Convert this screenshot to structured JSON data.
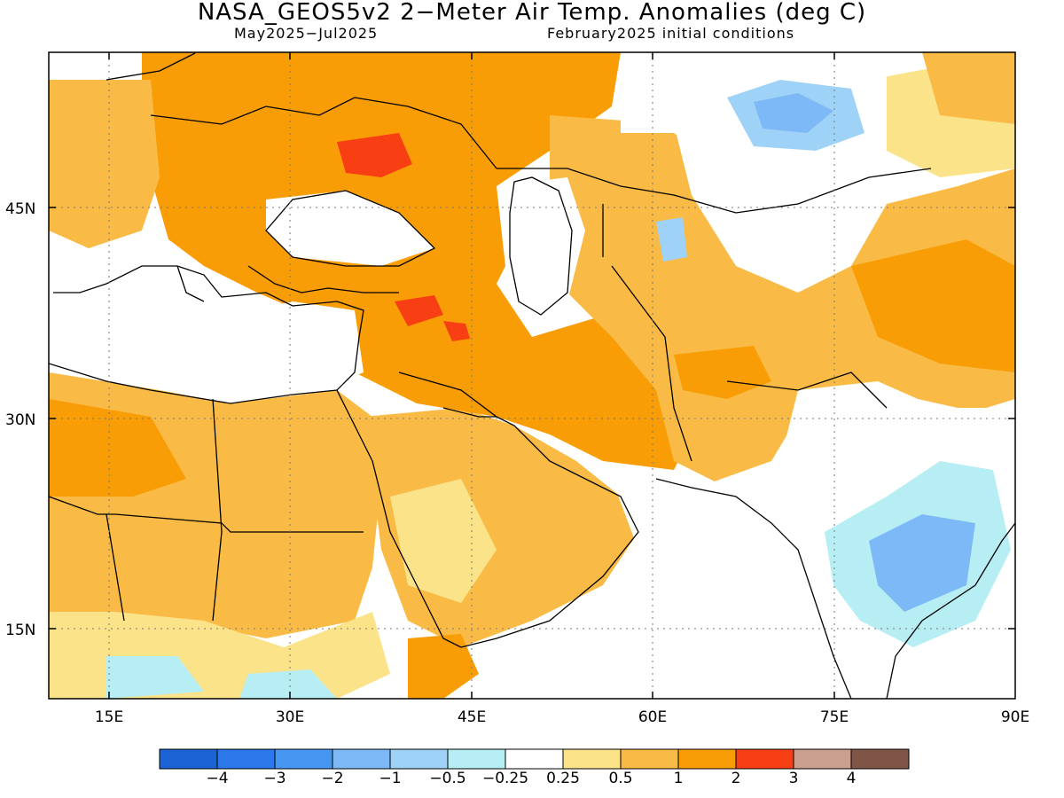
{
  "title": "NASA_GEOS5v2 2−Meter Air Temp. Anomalies (deg C)",
  "subtitle_left": "May2025−Jul2025",
  "subtitle_right": "February2025 initial conditions",
  "map": {
    "extent": {
      "lon_min": 10,
      "lon_max": 90,
      "lat_min": 10,
      "lat_max": 55
    },
    "lat_labels": [
      "45N",
      "30N",
      "15N"
    ],
    "lon_labels": [
      "15E",
      "30E",
      "45E",
      "60E",
      "75E",
      "90E"
    ],
    "grid": true
  },
  "colorbar": {
    "colors": [
      "#1b63d4",
      "#2a78ea",
      "#4597f2",
      "#7db9f6",
      "#9fd2f7",
      "#b6eef4",
      "#ffffff",
      "#fbe38a",
      "#f9bb45",
      "#f99d06",
      "#f83f14",
      "#c9a090",
      "#7e5547"
    ],
    "labels": [
      "−4",
      "−3",
      "−2",
      "−1",
      "−0.5",
      "−0.25",
      "0.25",
      "0.5",
      "1",
      "2",
      "3",
      "4"
    ]
  },
  "anomaly_regions": [
    {
      "name": "europe-middle-east-warm",
      "level": "1 to 2"
    },
    {
      "name": "black-sea-hotspot",
      "level": "2 to 3"
    },
    {
      "name": "iraq-hotspot",
      "level": "2 to 3"
    },
    {
      "name": "north-africa-warm",
      "level": "0.5 to 2"
    },
    {
      "name": "arabia-warm",
      "level": "0.25 to 1"
    },
    {
      "name": "kazakhstan-cool",
      "level": "-0.5 to -1"
    },
    {
      "name": "india-cool",
      "level": "-0.25 to -1"
    },
    {
      "name": "east-africa-cool",
      "level": "-0.25 to -1"
    }
  ]
}
